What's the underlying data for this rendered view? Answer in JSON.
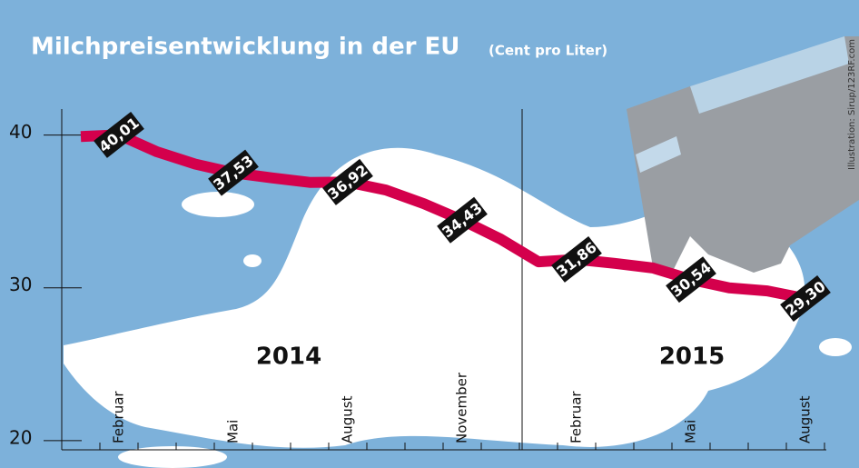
{
  "chart_data": {
    "type": "line",
    "title": "Milchpreisentwicklung in der EU",
    "subtitle": "(Cent pro Liter)",
    "source": "Illustration: Sirup/123RF.com",
    "annotations": [
      "2014",
      "2015"
    ],
    "categories": [
      null,
      "Februar",
      null,
      null,
      "Mai",
      null,
      null,
      "August",
      null,
      null,
      "November",
      null,
      null,
      "Februar",
      null,
      null,
      "Mai",
      null,
      null,
      "August"
    ],
    "series": [
      {
        "color": "#d4004c",
        "values": [
          39.9,
          40.01,
          38.9,
          38.1,
          37.53,
          37.2,
          36.9,
          36.92,
          36.4,
          35.5,
          34.43,
          33.2,
          31.7,
          31.86,
          31.6,
          31.3,
          30.54,
          30.0,
          29.8,
          29.3
        ],
        "value_labels": [
          null,
          "40,01",
          null,
          null,
          "37,53",
          null,
          null,
          "36,92",
          null,
          null,
          "34,43",
          null,
          null,
          "31,86",
          null,
          null,
          "30,54",
          null,
          null,
          "29,30"
        ]
      }
    ],
    "ylim": [
      19.4,
      41.7
    ],
    "yticks": [
      20,
      30,
      40
    ]
  }
}
